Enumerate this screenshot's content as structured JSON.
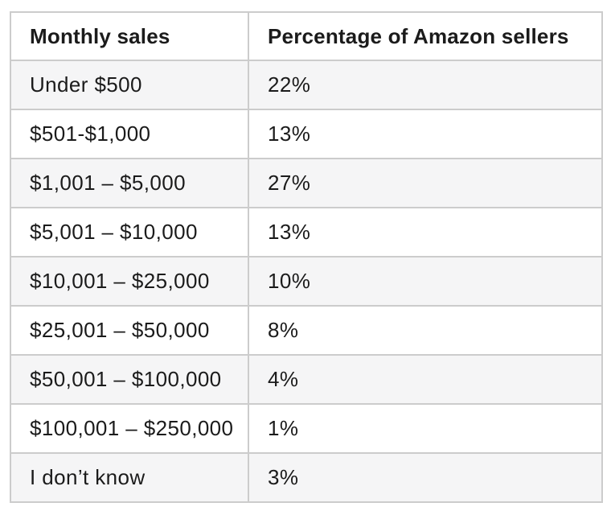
{
  "chart_data": {
    "type": "table",
    "title": "",
    "columns": [
      "Monthly sales",
      "Percentage of Amazon sellers"
    ],
    "rows": [
      [
        "Under $500",
        "22%"
      ],
      [
        "$501-$1,000",
        "13%"
      ],
      [
        "$1,001 – $5,000",
        "27%"
      ],
      [
        "$5,001 – $10,000",
        "13%"
      ],
      [
        "$10,001 – $25,000",
        "10%"
      ],
      [
        "$25,001 – $50,000",
        "8%"
      ],
      [
        "$50,001 – $100,000",
        "4%"
      ],
      [
        "$100,001 – $250,000",
        "1%"
      ],
      [
        "I don’t know",
        "3%"
      ]
    ],
    "categories": [
      "Under $500",
      "$501-$1,000",
      "$1,001 – $5,000",
      "$5,001 – $10,000",
      "$10,001 – $25,000",
      "$25,001 – $50,000",
      "$50,001 – $100,000",
      "$100,001 – $250,000",
      "I don’t know"
    ],
    "values": [
      22,
      13,
      27,
      13,
      10,
      8,
      4,
      1,
      3
    ],
    "value_unit": "%"
  },
  "colors": {
    "page_bg": "#ffffff",
    "row_bg": "#ffffff",
    "stripe_row_bg": "#f5f5f6",
    "border": "#cccccc",
    "text": "#1b1b1b"
  }
}
